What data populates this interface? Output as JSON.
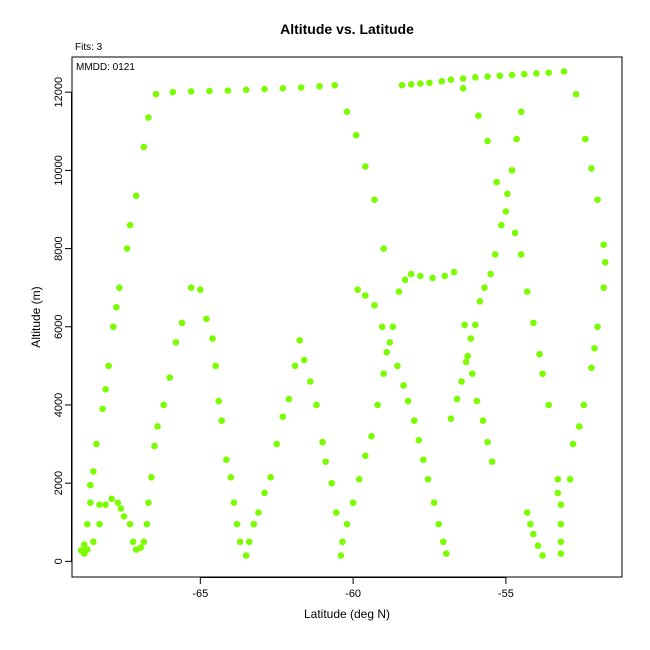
{
  "chart_data": {
    "type": "scatter",
    "title": "Altitude vs. Latitude",
    "xlabel": "Latitude (deg N)",
    "ylabel": "Altitude (m)",
    "xlim": [
      -69.2,
      -51.2
    ],
    "ylim": [
      -400,
      12900
    ],
    "xticks": [
      -65,
      -60,
      -55
    ],
    "yticks": [
      0,
      2000,
      4000,
      6000,
      8000,
      10000,
      12000
    ],
    "grid": false,
    "annotations": [
      "Fits: 3",
      "MMDD: 0121"
    ],
    "point_color": "#7cfc00",
    "points": [
      [
        -68.9,
        280
      ],
      [
        -68.8,
        430
      ],
      [
        -68.8,
        200
      ],
      [
        -68.7,
        950
      ],
      [
        -68.6,
        1500
      ],
      [
        -68.6,
        1950
      ],
      [
        -68.5,
        2300
      ],
      [
        -68.4,
        3000
      ],
      [
        -68.3,
        1450
      ],
      [
        -68.2,
        3900
      ],
      [
        -68.1,
        4400
      ],
      [
        -68.0,
        5000
      ],
      [
        -67.85,
        6000
      ],
      [
        -67.75,
        6500
      ],
      [
        -67.65,
        7000
      ],
      [
        -67.4,
        8000
      ],
      [
        -67.3,
        8600
      ],
      [
        -67.1,
        9350
      ],
      [
        -66.85,
        10600
      ],
      [
        -66.7,
        11350
      ],
      [
        -66.45,
        11950
      ],
      [
        -65.9,
        12000
      ],
      [
        -65.3,
        12020
      ],
      [
        -64.7,
        12030
      ],
      [
        -64.1,
        12040
      ],
      [
        -63.5,
        12060
      ],
      [
        -62.9,
        12080
      ],
      [
        -62.3,
        12100
      ],
      [
        -61.7,
        12120
      ],
      [
        -61.1,
        12150
      ],
      [
        -60.6,
        12180
      ],
      [
        -60.2,
        11500
      ],
      [
        -59.9,
        10900
      ],
      [
        -59.6,
        10100
      ],
      [
        -59.3,
        9250
      ],
      [
        -59.0,
        8000
      ],
      [
        -58.4,
        12180
      ],
      [
        -58.1,
        12200
      ],
      [
        -57.8,
        12220
      ],
      [
        -57.5,
        12240
      ],
      [
        -57.1,
        12280
      ],
      [
        -56.8,
        12320
      ],
      [
        -56.4,
        12350
      ],
      [
        -56.0,
        12380
      ],
      [
        -55.6,
        12400
      ],
      [
        -55.2,
        12420
      ],
      [
        -54.8,
        12440
      ],
      [
        -54.4,
        12460
      ],
      [
        -54.0,
        12480
      ],
      [
        -53.6,
        12500
      ],
      [
        -53.1,
        12530
      ],
      [
        -52.7,
        11950
      ],
      [
        -52.4,
        10800
      ],
      [
        -52.2,
        10050
      ],
      [
        -52.0,
        9250
      ],
      [
        -51.8,
        8100
      ],
      [
        -51.75,
        7650
      ],
      [
        -51.8,
        7000
      ],
      [
        -52.0,
        6000
      ],
      [
        -52.1,
        5450
      ],
      [
        -52.2,
        4950
      ],
      [
        -52.45,
        4000
      ],
      [
        -52.6,
        3450
      ],
      [
        -52.8,
        3000
      ],
      [
        -52.9,
        2100
      ],
      [
        -53.3,
        2100
      ],
      [
        -53.3,
        1750
      ],
      [
        -53.2,
        1450
      ],
      [
        -53.2,
        950
      ],
      [
        -53.2,
        500
      ],
      [
        -53.2,
        200
      ],
      [
        -53.6,
        4000
      ],
      [
        -53.8,
        4800
      ],
      [
        -53.9,
        5300
      ],
      [
        -54.1,
        6100
      ],
      [
        -54.3,
        6900
      ],
      [
        -54.5,
        7850
      ],
      [
        -54.7,
        8400
      ],
      [
        -55.0,
        8950
      ],
      [
        -55.3,
        9700
      ],
      [
        -55.6,
        10750
      ],
      [
        -55.9,
        11400
      ],
      [
        -56.4,
        12100
      ],
      [
        -56.7,
        7400
      ],
      [
        -57.0,
        7300
      ],
      [
        -57.4,
        7250
      ],
      [
        -57.8,
        7300
      ],
      [
        -58.1,
        7350
      ],
      [
        -58.3,
        7200
      ],
      [
        -58.5,
        6900
      ],
      [
        -58.7,
        6000
      ],
      [
        -58.9,
        5350
      ],
      [
        -59.0,
        4800
      ],
      [
        -59.2,
        4000
      ],
      [
        -59.4,
        3200
      ],
      [
        -59.6,
        2700
      ],
      [
        -59.8,
        2100
      ],
      [
        -60.0,
        1500
      ],
      [
        -60.2,
        950
      ],
      [
        -60.35,
        500
      ],
      [
        -60.4,
        150
      ],
      [
        -60.55,
        1250
      ],
      [
        -60.7,
        2000
      ],
      [
        -60.9,
        2550
      ],
      [
        -61.0,
        3050
      ],
      [
        -61.2,
        4000
      ],
      [
        -61.4,
        4600
      ],
      [
        -61.6,
        5150
      ],
      [
        -61.75,
        5650
      ],
      [
        -61.9,
        5000
      ],
      [
        -62.1,
        4150
      ],
      [
        -62.3,
        3700
      ],
      [
        -62.5,
        3000
      ],
      [
        -62.7,
        2150
      ],
      [
        -62.9,
        1750
      ],
      [
        -63.1,
        1250
      ],
      [
        -63.25,
        950
      ],
      [
        -63.4,
        500
      ],
      [
        -63.5,
        150
      ],
      [
        -63.7,
        500
      ],
      [
        -63.8,
        950
      ],
      [
        -63.9,
        1500
      ],
      [
        -64.0,
        2150
      ],
      [
        -64.15,
        2600
      ],
      [
        -64.3,
        3600
      ],
      [
        -64.4,
        4100
      ],
      [
        -64.5,
        5000
      ],
      [
        -64.6,
        5700
      ],
      [
        -64.8,
        6200
      ],
      [
        -65.0,
        6950
      ],
      [
        -65.3,
        7000
      ],
      [
        -65.6,
        6100
      ],
      [
        -65.8,
        5600
      ],
      [
        -66.0,
        4700
      ],
      [
        -66.2,
        4000
      ],
      [
        -66.4,
        3450
      ],
      [
        -66.5,
        2950
      ],
      [
        -66.6,
        2150
      ],
      [
        -66.7,
        1500
      ],
      [
        -66.75,
        950
      ],
      [
        -66.85,
        500
      ],
      [
        -66.95,
        350
      ],
      [
        -67.1,
        300
      ],
      [
        -67.2,
        500
      ],
      [
        -67.3,
        950
      ],
      [
        -67.5,
        1150
      ],
      [
        -67.6,
        1350
      ],
      [
        -67.7,
        1500
      ],
      [
        -67.9,
        1600
      ],
      [
        -68.1,
        1450
      ],
      [
        -68.3,
        950
      ],
      [
        -68.5,
        500
      ],
      [
        -68.7,
        300
      ],
      [
        -59.85,
        6950
      ],
      [
        -59.6,
        6800
      ],
      [
        -59.3,
        6550
      ],
      [
        -59.05,
        6000
      ],
      [
        -58.8,
        5600
      ],
      [
        -58.55,
        5000
      ],
      [
        -58.35,
        4500
      ],
      [
        -58.2,
        4100
      ],
      [
        -58.0,
        3600
      ],
      [
        -57.85,
        3100
      ],
      [
        -57.7,
        2600
      ],
      [
        -57.55,
        2100
      ],
      [
        -57.35,
        1500
      ],
      [
        -57.2,
        950
      ],
      [
        -57.05,
        500
      ],
      [
        -56.95,
        200
      ],
      [
        -56.8,
        3650
      ],
      [
        -56.6,
        4150
      ],
      [
        -56.45,
        4600
      ],
      [
        -56.3,
        5100
      ],
      [
        -56.15,
        5700
      ],
      [
        -56.0,
        6050
      ],
      [
        -55.85,
        6650
      ],
      [
        -55.7,
        7000
      ],
      [
        -55.5,
        7350
      ],
      [
        -55.35,
        7850
      ],
      [
        -55.15,
        8600
      ],
      [
        -54.95,
        9400
      ],
      [
        -54.8,
        10000
      ],
      [
        -54.65,
        10800
      ],
      [
        -54.5,
        11500
      ],
      [
        -54.3,
        1250
      ],
      [
        -54.2,
        950
      ],
      [
        -54.1,
        700
      ],
      [
        -53.95,
        400
      ],
      [
        -53.8,
        150
      ],
      [
        -55.45,
        2550
      ],
      [
        -55.6,
        3050
      ],
      [
        -55.75,
        3600
      ],
      [
        -55.95,
        4100
      ],
      [
        -56.1,
        4800
      ],
      [
        -56.25,
        5250
      ],
      [
        -56.35,
        6050
      ]
    ]
  }
}
